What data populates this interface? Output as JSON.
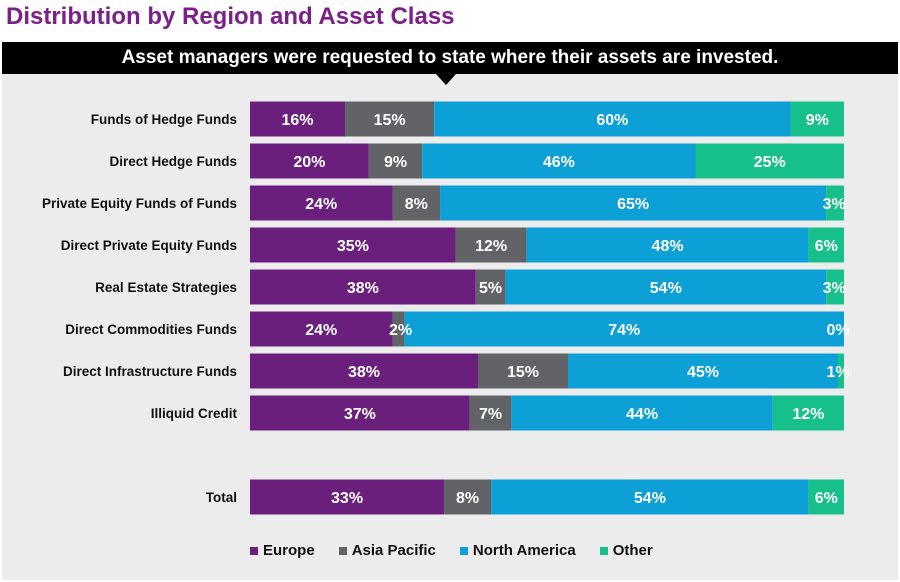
{
  "title": "Distribution by Region and Asset Class",
  "subtitle": "Asset managers were requested to state where their assets are invested.",
  "chart_data": {
    "type": "bar",
    "orientation": "horizontal",
    "stacked": true,
    "categories": [
      "Funds of Hedge Funds",
      "Direct Hedge Funds",
      "Private Equity Funds of Funds",
      "Direct Private Equity Funds",
      "Real Estate Strategies",
      "Direct Commodities Funds",
      "Direct Infrastructure Funds",
      "Illiquid Credit",
      "Total"
    ],
    "series": [
      {
        "name": "Europe",
        "color": "#6b1f7c",
        "values": [
          16,
          20,
          24,
          35,
          38,
          24,
          38,
          37,
          33
        ]
      },
      {
        "name": "Asia Pacific",
        "color": "#626366",
        "values": [
          15,
          9,
          8,
          12,
          5,
          2,
          15,
          7,
          8
        ]
      },
      {
        "name": "North America",
        "color": "#0ca0d6",
        "values": [
          60,
          46,
          65,
          48,
          54,
          74,
          45,
          44,
          54
        ]
      },
      {
        "name": "Other",
        "color": "#17c08a",
        "values": [
          9,
          25,
          3,
          6,
          3,
          0,
          1,
          12,
          6
        ]
      }
    ],
    "value_suffix": "%",
    "legend_position": "bottom",
    "grid": false
  }
}
